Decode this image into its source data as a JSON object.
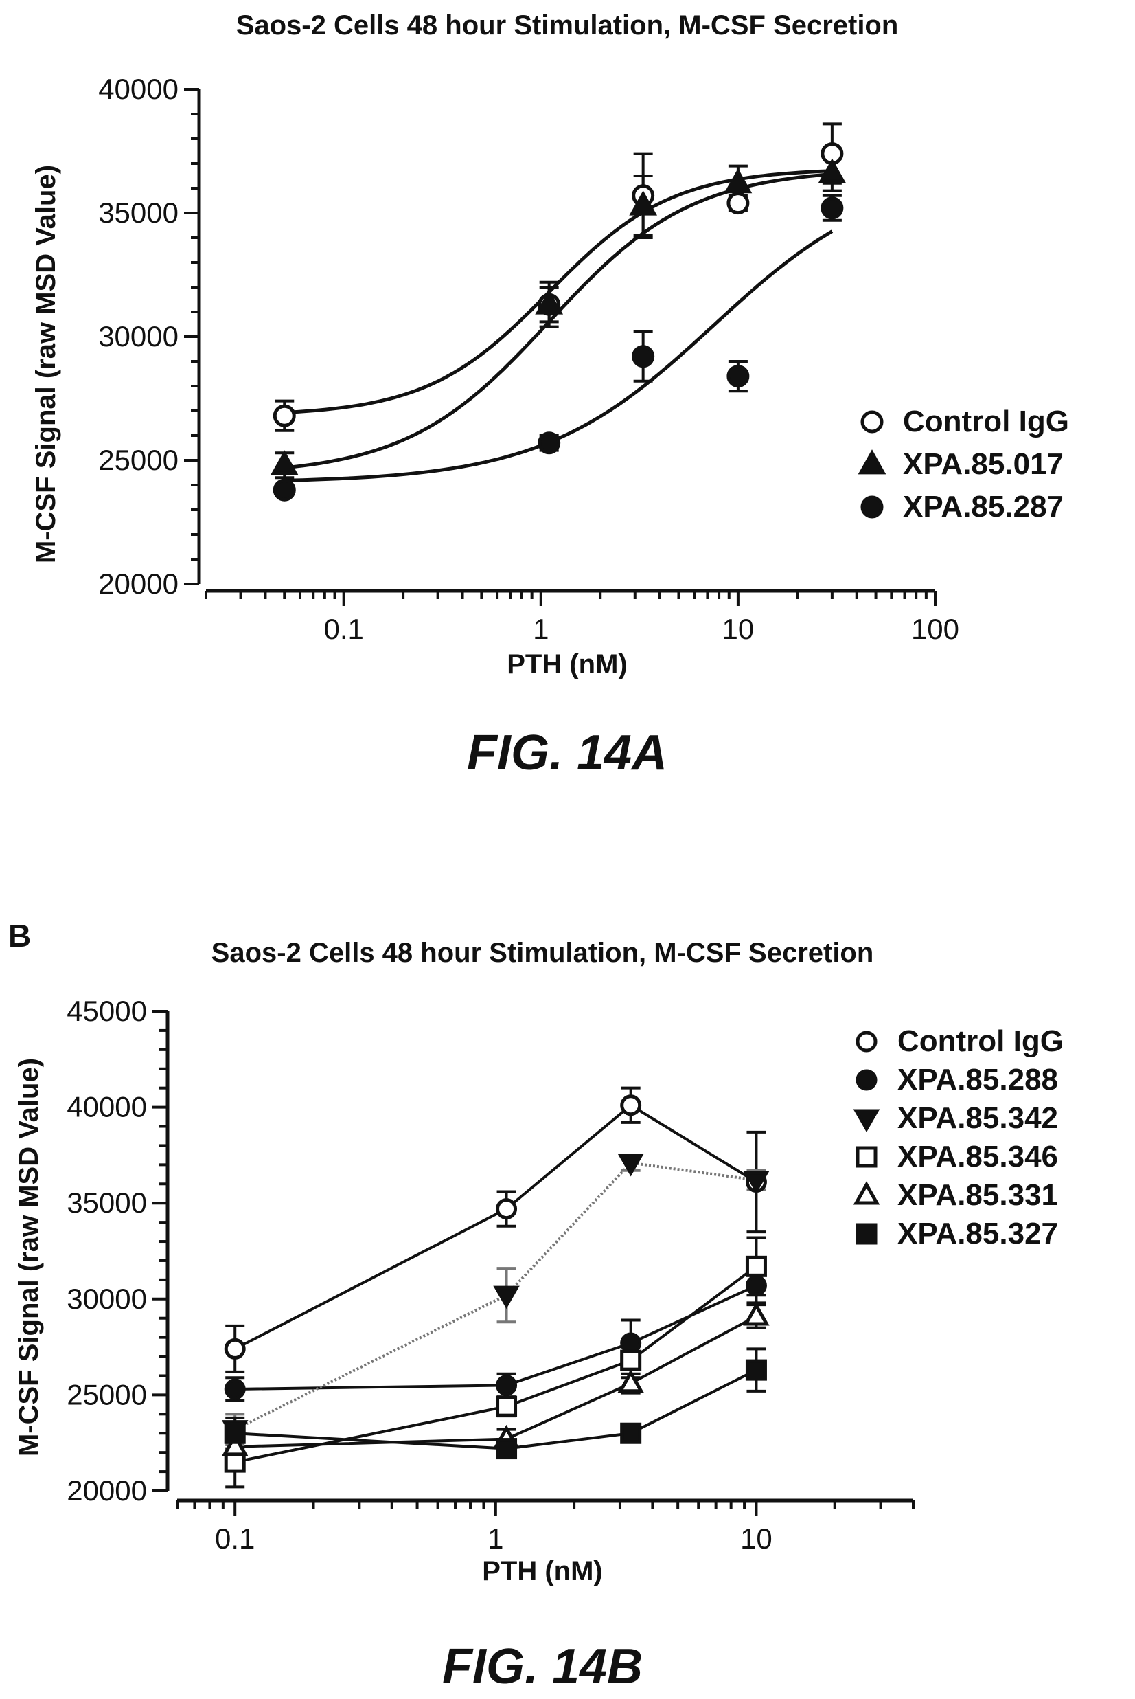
{
  "chart_data": [
    {
      "type": "scatter",
      "panel": "A",
      "caption": "FIG. 14A",
      "title": "Saos-2 Cells 48 hour Stimulation, M-CSF Secretion",
      "xlabel": "PTH (nM)",
      "ylabel": "M-CSF Signal (raw MSD Value)",
      "xscale": "log",
      "xlim": [
        0.02,
        100
      ],
      "ylim": [
        20000,
        40000
      ],
      "xticks": [
        0.1,
        1,
        10,
        100
      ],
      "xtick_labels": [
        "0.1",
        "1",
        "10",
        "100"
      ],
      "yticks": [
        20000,
        25000,
        30000,
        35000,
        40000
      ],
      "ytick_labels": [
        "20000",
        "25000",
        "30000",
        "35000",
        "40000"
      ],
      "grid": false,
      "legend": "right",
      "fit": "sigmoidal",
      "series": [
        {
          "name": "Control IgG",
          "marker": "circle-open",
          "x": [
            0.05,
            1.1,
            3.3,
            10,
            30
          ],
          "y": [
            26800,
            31300,
            35700,
            35400,
            37400
          ],
          "err": [
            600,
            900,
            1700,
            300,
            1200
          ],
          "fit_params": {
            "bottom": 26800,
            "top": 36800,
            "ec50": 1.1,
            "hill": 1.4
          }
        },
        {
          "name": "XPA.85.017",
          "marker": "triangle-filled",
          "x": [
            0.05,
            1.1,
            3.3,
            10,
            30
          ],
          "y": [
            24800,
            31300,
            35300,
            36200,
            36600
          ],
          "err": [
            500,
            700,
            1200,
            700,
            700
          ],
          "fit_params": {
            "bottom": 24400,
            "top": 36800,
            "ec50": 1.1,
            "hill": 1.2
          }
        },
        {
          "name": "XPA.85.287",
          "marker": "circle-filled",
          "x": [
            0.05,
            1.1,
            3.3,
            10,
            30
          ],
          "y": [
            23800,
            25700,
            29200,
            28400,
            35200
          ],
          "err": [
            150,
            300,
            1000,
            600,
            500
          ],
          "fit_params": {
            "bottom": 24100,
            "top": 36800,
            "ec50": 7.5,
            "hill": 1.0
          }
        }
      ]
    },
    {
      "type": "line",
      "panel": "B",
      "panel_label": "B",
      "caption": "FIG. 14B",
      "title": "Saos-2 Cells 48 hour Stimulation, M-CSF Secretion",
      "xlabel": "PTH (nM)",
      "ylabel": "M-CSF Signal (raw MSD Value)",
      "xscale": "log",
      "xlim": [
        0.06,
        40
      ],
      "ylim": [
        20000,
        45000
      ],
      "xticks": [
        0.1,
        1,
        10
      ],
      "xtick_labels": [
        "0.1",
        "1",
        "10"
      ],
      "yticks": [
        20000,
        25000,
        30000,
        35000,
        40000,
        45000
      ],
      "ytick_labels": [
        "20000",
        "25000",
        "30000",
        "35000",
        "40000",
        "45000"
      ],
      "grid": false,
      "legend": "top-right",
      "series": [
        {
          "name": "Control IgG",
          "marker": "circle-open",
          "x": [
            0.1,
            1.1,
            3.3,
            10
          ],
          "y": [
            27400,
            34700,
            40100,
            36100
          ],
          "err": [
            1200,
            900,
            900,
            2600
          ]
        },
        {
          "name": "XPA.85.288",
          "marker": "circle-filled",
          "x": [
            0.1,
            1.1,
            3.3,
            10
          ],
          "y": [
            25300,
            25500,
            27700,
            30700
          ],
          "err": [
            600,
            600,
            1200,
            900
          ]
        },
        {
          "name": "XPA.85.342",
          "marker": "triangle-down-filled",
          "line": "dotted",
          "x": [
            0.1,
            1.1,
            3.3,
            10
          ],
          "y": [
            23200,
            30200,
            37100,
            36200
          ],
          "err": [
            800,
            1400,
            400,
            500
          ]
        },
        {
          "name": "XPA.85.346",
          "marker": "square-open",
          "x": [
            0.1,
            1.1,
            3.3,
            10
          ],
          "y": [
            21500,
            24400,
            26800,
            31700
          ],
          "err": [
            1300,
            500,
            900,
            1500
          ]
        },
        {
          "name": "XPA.85.331",
          "marker": "triangle-open",
          "x": [
            0.1,
            1.1,
            3.3,
            10
          ],
          "y": [
            22300,
            22700,
            25600,
            29100
          ],
          "err": [
            500,
            500,
            500,
            600
          ]
        },
        {
          "name": "XPA.85.327",
          "marker": "square-filled",
          "x": [
            0.1,
            1.1,
            3.3,
            10
          ],
          "y": [
            23000,
            22200,
            23000,
            26300
          ],
          "err": [
            800,
            300,
            200,
            1100
          ]
        }
      ]
    }
  ]
}
